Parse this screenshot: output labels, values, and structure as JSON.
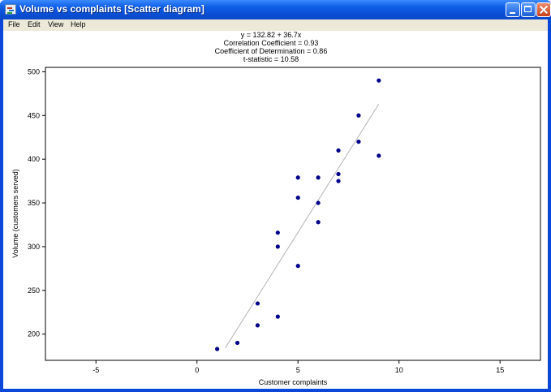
{
  "window": {
    "title": "Volume vs complaints [Scatter diagram]"
  },
  "menu": {
    "items": [
      "File",
      "Edit",
      "View",
      "Help"
    ]
  },
  "stats": {
    "equation": "y = 132.82 + 36.7x",
    "correlation": "Correlation Coefficient = 0.93",
    "determination": "Coefficient of Determination = 0.86",
    "t_statistic": "t-statistic = 10.58"
  },
  "chart_data": {
    "type": "scatter",
    "xlabel": "Customer complaints",
    "ylabel": "Volume (customers served)",
    "xlim": [
      -7.5,
      17
    ],
    "ylim": [
      170,
      505
    ],
    "x_ticks": [
      -5,
      0,
      5,
      10,
      15
    ],
    "y_ticks": [
      200,
      250,
      300,
      350,
      400,
      450,
      500
    ],
    "points": [
      {
        "x": 1,
        "y": 183
      },
      {
        "x": 2,
        "y": 190
      },
      {
        "x": 3,
        "y": 210
      },
      {
        "x": 3,
        "y": 235
      },
      {
        "x": 4,
        "y": 220
      },
      {
        "x": 4,
        "y": 300
      },
      {
        "x": 4,
        "y": 316
      },
      {
        "x": 5,
        "y": 278
      },
      {
        "x": 5,
        "y": 356
      },
      {
        "x": 5,
        "y": 379
      },
      {
        "x": 6,
        "y": 328
      },
      {
        "x": 6,
        "y": 350
      },
      {
        "x": 6,
        "y": 379
      },
      {
        "x": 7,
        "y": 375
      },
      {
        "x": 7,
        "y": 383
      },
      {
        "x": 7,
        "y": 410
      },
      {
        "x": 8,
        "y": 420
      },
      {
        "x": 8,
        "y": 450
      },
      {
        "x": 9,
        "y": 404
      },
      {
        "x": 9,
        "y": 490
      }
    ],
    "trendline": {
      "intercept": 132.82,
      "slope": 36.7,
      "x_range": [
        1.4,
        9
      ]
    },
    "colors": {
      "points": "#00008b",
      "trendline": "#b4b4b4"
    }
  }
}
